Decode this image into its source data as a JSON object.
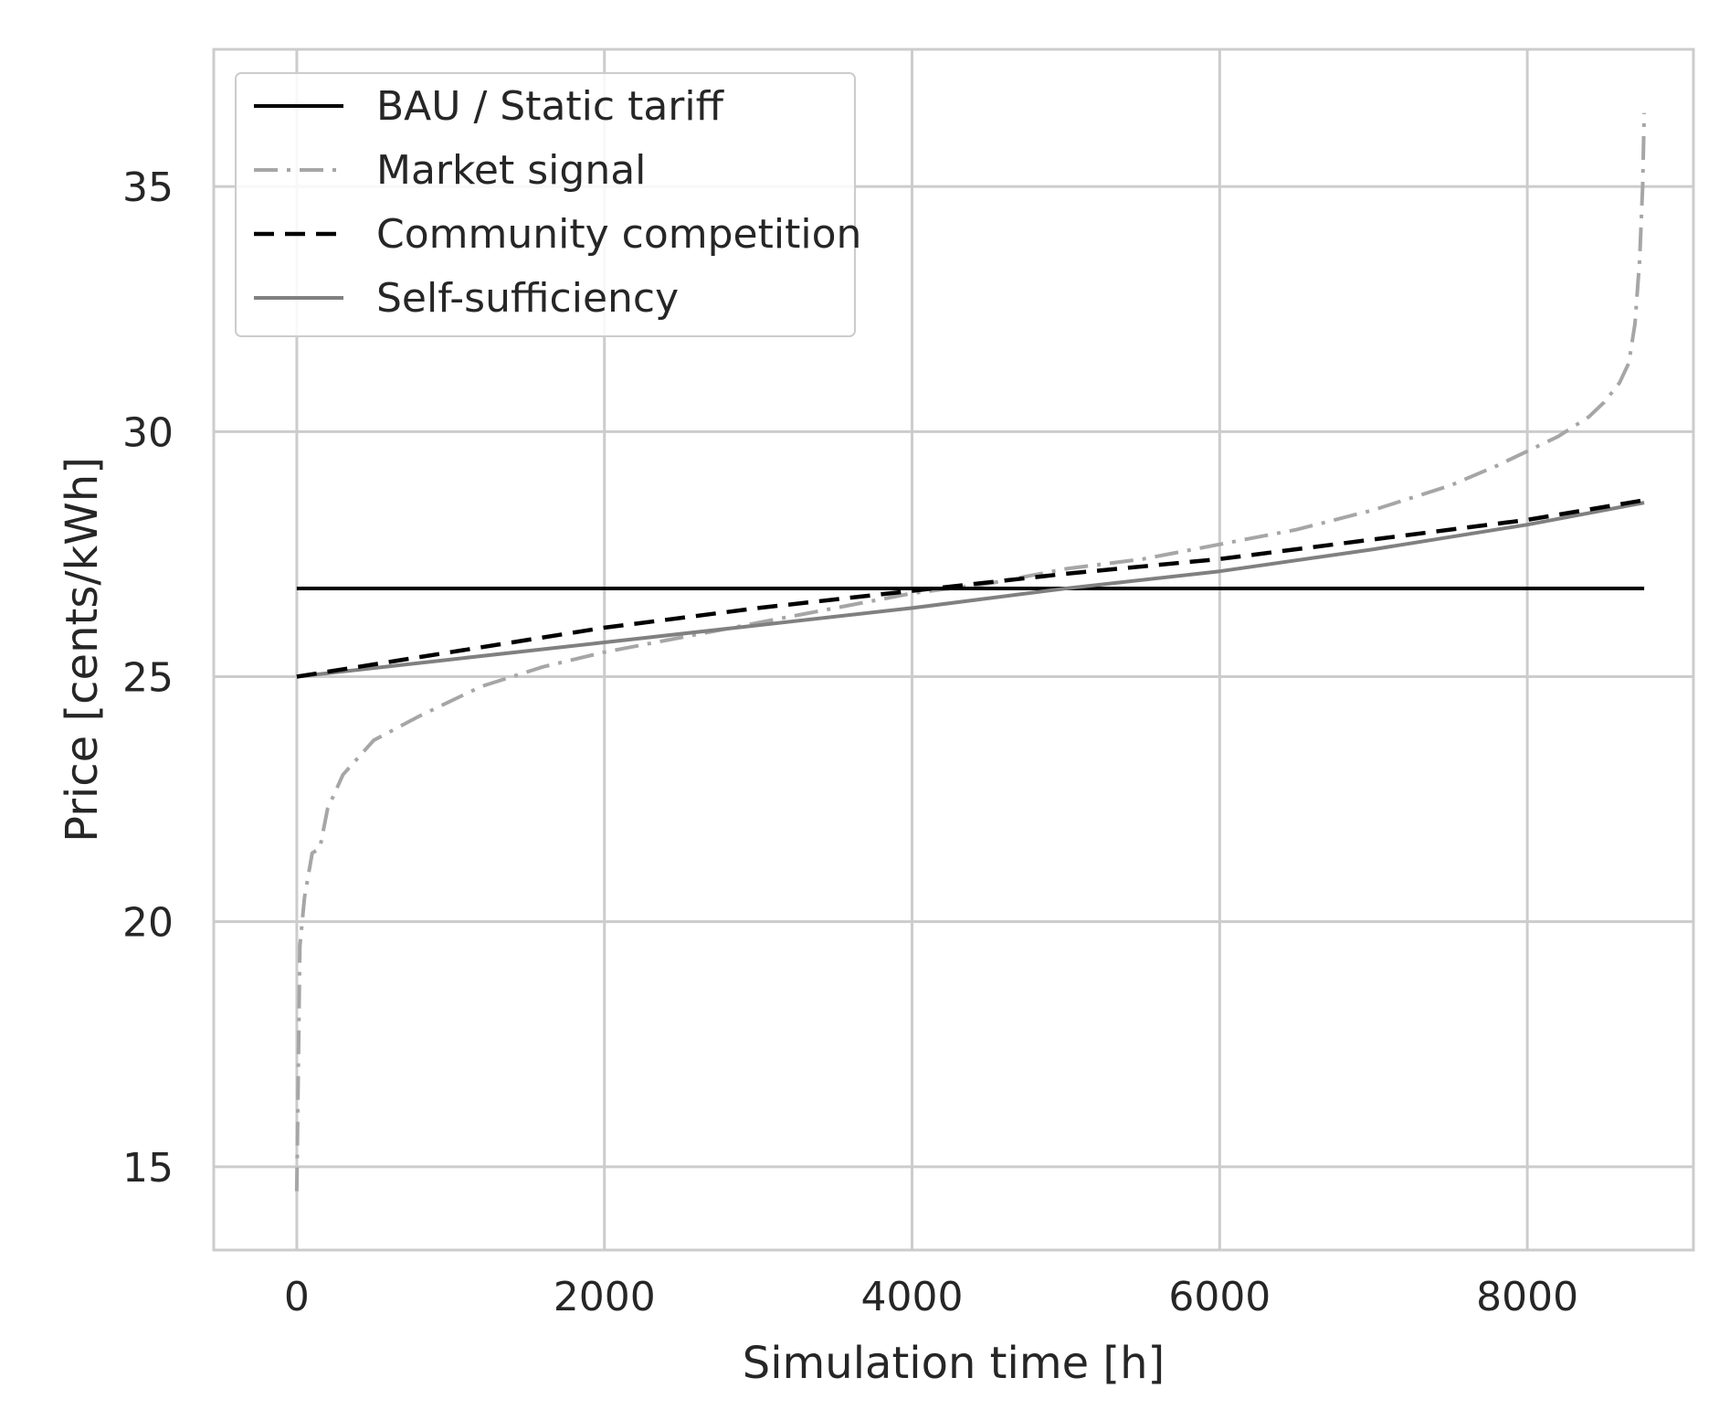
{
  "chart_data": {
    "type": "line",
    "title": "",
    "xlabel": "Simulation time [h]",
    "ylabel": "Price [cents/kWh]",
    "xlim": [
      -540,
      9080
    ],
    "ylim": [
      13.3,
      37.8
    ],
    "xticks": [
      0,
      2000,
      4000,
      6000,
      8000
    ],
    "xtick_labels": [
      "0",
      "2000",
      "4000",
      "6000",
      "8000"
    ],
    "yticks": [
      15,
      20,
      25,
      30,
      35
    ],
    "ytick_labels": [
      "15",
      "20",
      "25",
      "30",
      "35"
    ],
    "grid": true,
    "legend_position": "top-left",
    "series": [
      {
        "name": "BAU / Static tariff",
        "color": "#000000",
        "line_style": "solid",
        "x": [
          0,
          8760
        ],
        "y": [
          26.8,
          26.8
        ]
      },
      {
        "name": "Market signal",
        "color": "#a6a6a6",
        "line_style": "dash-dot",
        "x": [
          0,
          20,
          50,
          100,
          150,
          200,
          300,
          500,
          800,
          1200,
          1600,
          2000,
          2500,
          3000,
          3500,
          4000,
          4500,
          5000,
          5500,
          6000,
          6500,
          7000,
          7500,
          7800,
          8000,
          8200,
          8400,
          8500,
          8600,
          8660,
          8700,
          8730,
          8750,
          8760
        ],
        "y": [
          14.5,
          19.5,
          20.5,
          21.4,
          21.5,
          22.3,
          23.0,
          23.7,
          24.2,
          24.8,
          25.2,
          25.5,
          25.8,
          26.1,
          26.4,
          26.7,
          26.9,
          27.2,
          27.4,
          27.7,
          28.0,
          28.4,
          28.9,
          29.3,
          29.6,
          29.9,
          30.3,
          30.6,
          31.0,
          31.4,
          32.2,
          33.5,
          35.0,
          36.5
        ]
      },
      {
        "name": "Community competition",
        "color": "#000000",
        "line_style": "dashed",
        "x": [
          0,
          1000,
          2000,
          3000,
          4000,
          5000,
          6000,
          7000,
          8000,
          8760
        ],
        "y": [
          25.0,
          25.5,
          26.0,
          26.4,
          26.75,
          27.1,
          27.4,
          27.8,
          28.2,
          28.6
        ]
      },
      {
        "name": "Self-sufficiency",
        "color": "#808080",
        "line_style": "solid",
        "x": [
          0,
          1000,
          2000,
          3000,
          4000,
          5000,
          6000,
          7000,
          8000,
          8760
        ],
        "y": [
          25.0,
          25.35,
          25.7,
          26.05,
          26.4,
          26.8,
          27.15,
          27.6,
          28.1,
          28.55
        ]
      }
    ]
  }
}
